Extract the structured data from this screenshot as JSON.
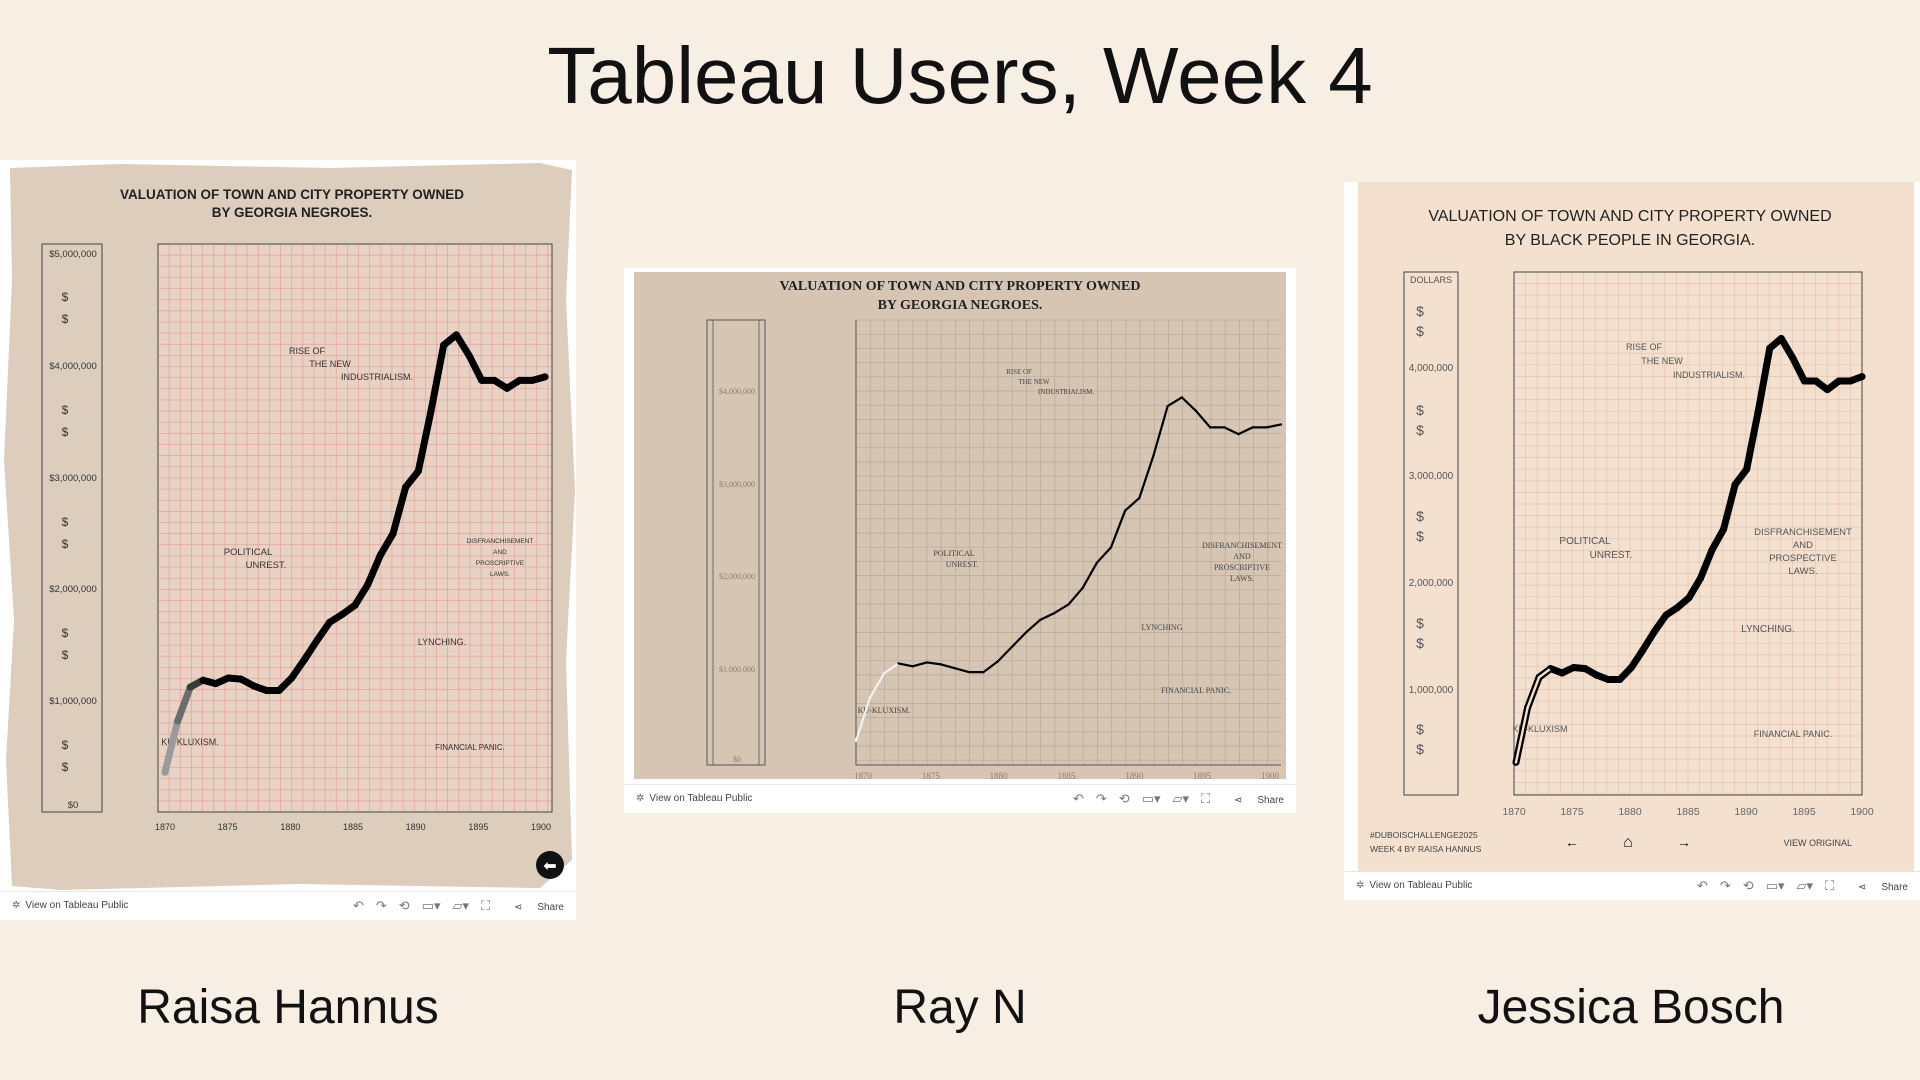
{
  "page": {
    "title": "Tableau Users, Week 4"
  },
  "authors": [
    "Raisa Hannus",
    "Ray N",
    "Jessica Bosch"
  ],
  "toolbar": {
    "view_label": "View on Tableau Public",
    "share_label": "Share"
  },
  "colors": {
    "background": "#f8efe4",
    "paper1": "#dccdbd",
    "grid1": "#e39a9a",
    "paper2": "#d6c5b3",
    "paper3": "#f3e0cf",
    "line": "#000000"
  },
  "icons": [
    "gear-icon",
    "undo-icon",
    "redo-icon",
    "revert-icon",
    "refresh-icon",
    "download-icon",
    "fullscreen-icon",
    "share-icon",
    "back-arrow-icon",
    "home-icon",
    "forward-arrow-icon"
  ],
  "annotations": {
    "rise": [
      "RISE OF",
      "THE NEW",
      "INDUSTRIALISM."
    ],
    "political": [
      "POLITICAL",
      "UNREST."
    ],
    "disfr_a": [
      "DISFRANCHISEMENT",
      "AND",
      "PROSCRIPTIVE",
      "LAWS."
    ],
    "disfr_b": [
      "DISFRANCHISEMENT",
      "AND",
      "PROSPECTIVE",
      "LAWS."
    ],
    "lynching": "LYNCHING.",
    "lynching_b": "LYNCHING",
    "kkk": "KU-KLUXISM.",
    "kkk_b": "KU-KLUXISM",
    "panic": "FINANCIAL PANIC."
  },
  "chart_data": [
    {
      "type": "line",
      "title": "VALUATION OF TOWN AND CITY PROPERTY OWNED BY GEORGIA NEGROES.",
      "x": [
        1870,
        1871,
        1872,
        1873,
        1874,
        1875,
        1876,
        1877,
        1878,
        1879,
        1880,
        1881,
        1882,
        1883,
        1884,
        1885,
        1886,
        1887,
        1888,
        1889,
        1890,
        1891,
        1892,
        1893,
        1894,
        1895,
        1896,
        1897,
        1898,
        1899,
        1900
      ],
      "values": [
        350000,
        800000,
        1100000,
        1160000,
        1130000,
        1180000,
        1170000,
        1110000,
        1070000,
        1070000,
        1180000,
        1340000,
        1510000,
        1670000,
        1740000,
        1820000,
        2000000,
        2260000,
        2450000,
        2860000,
        3000000,
        3530000,
        4110000,
        4200000,
        4020000,
        3800000,
        3800000,
        3730000,
        3800000,
        3800000,
        3830000
      ],
      "x_ticks": [
        "1870",
        "1875",
        "1880",
        "1885",
        "1890",
        "1895",
        "1900"
      ],
      "y_ticks": [
        "$0",
        "$1,000,000",
        "$2,000,000",
        "$3,000,000",
        "$4,000,000",
        "$5,000,000"
      ],
      "minor_y_label": "$",
      "xlim": [
        1870,
        1900
      ],
      "ylim": [
        0,
        5000000
      ],
      "grid": true
    },
    {
      "type": "line",
      "title": "VALUATION OF TOWN AND CITY PROPERTY OWNED BY GEORGIA NEGROES.",
      "x": [
        1870,
        1871,
        1872,
        1873,
        1874,
        1875,
        1876,
        1877,
        1878,
        1879,
        1880,
        1881,
        1882,
        1883,
        1884,
        1885,
        1886,
        1887,
        1888,
        1889,
        1890,
        1891,
        1892,
        1893,
        1894,
        1895,
        1896,
        1897,
        1898,
        1899,
        1900
      ],
      "values": [
        250000,
        700000,
        950000,
        1050000,
        1020000,
        1060000,
        1040000,
        1000000,
        960000,
        960000,
        1070000,
        1220000,
        1370000,
        1500000,
        1570000,
        1660000,
        1830000,
        2090000,
        2250000,
        2630000,
        2760000,
        3200000,
        3710000,
        3800000,
        3660000,
        3490000,
        3490000,
        3420000,
        3490000,
        3490000,
        3520000
      ],
      "x_ticks": [
        "1870",
        "1875",
        "1880",
        "1885",
        "1890",
        "1895",
        "1900"
      ],
      "y_ticks": [
        "$0",
        "$1,000,000",
        "$2,000,000",
        "$3,000,000",
        "$4,000,000"
      ],
      "xlim": [
        1870,
        1900
      ],
      "ylim": [
        0,
        4600000
      ],
      "grid": true
    },
    {
      "type": "line",
      "title": "VALUATION OF TOWN AND CITY PROPERTY OWNED BY BLACK PEOPLE IN GEORGIA.",
      "x": [
        1870,
        1871,
        1872,
        1873,
        1874,
        1875,
        1876,
        1877,
        1878,
        1879,
        1880,
        1881,
        1882,
        1883,
        1884,
        1885,
        1886,
        1887,
        1888,
        1889,
        1890,
        1891,
        1892,
        1893,
        1894,
        1895,
        1896,
        1897,
        1898,
        1899,
        1900
      ],
      "values": [
        300000,
        800000,
        1080000,
        1160000,
        1120000,
        1170000,
        1160000,
        1100000,
        1060000,
        1060000,
        1170000,
        1330000,
        1500000,
        1650000,
        1720000,
        1810000,
        1990000,
        2250000,
        2440000,
        2850000,
        2990000,
        3520000,
        4100000,
        4190000,
        4010000,
        3800000,
        3800000,
        3720000,
        3800000,
        3800000,
        3840000
      ],
      "x_ticks": [
        "1870",
        "1875",
        "1880",
        "1885",
        "1890",
        "1895",
        "1900"
      ],
      "y_ticks": [
        "1,000,000",
        "2,000,000",
        "3,000,000",
        "4,000,000"
      ],
      "y_unit_label": "DOLLARS",
      "minor_y_label": "$",
      "xlim": [
        1870,
        1900
      ],
      "ylim": [
        0,
        4800000
      ],
      "grid": true
    }
  ],
  "panel3": {
    "footnote1": "#DUBOISCHALLENGE2025",
    "footnote2": "WEEK 4 BY RAISA HANNUS",
    "view_original": "VIEW ORIGINAL"
  }
}
